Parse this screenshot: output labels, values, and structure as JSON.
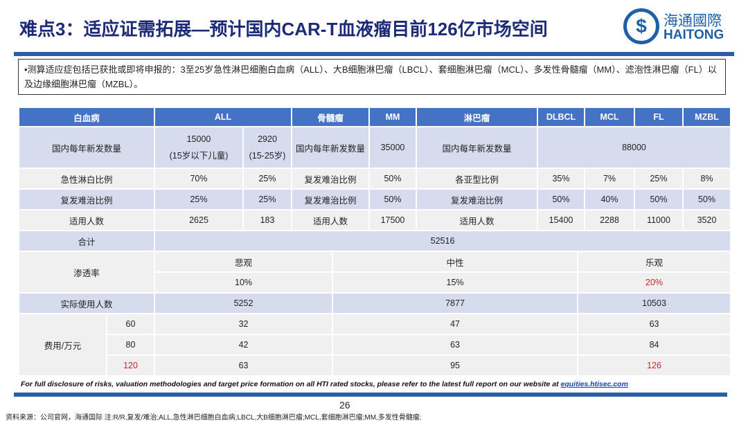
{
  "title": "难点3：适应证需拓展—预计国内CAR-T血液瘤目前126亿市场空间",
  "logo": {
    "cn": "海通國際",
    "en": "HAITONG"
  },
  "note": "•测算适应症包括已获批或即将申报的：3至25岁急性淋巴细胞白血病（ALL）、大B细胞淋巴瘤（LBCL）、套细胞淋巴瘤（MCL）、多发性骨髓瘤（MM）、滤泡性淋巴瘤（FL）以及边缘细胞淋巴瘤（MZBL）。",
  "table": {
    "header": [
      "白血病",
      "ALL",
      "骨髓瘤",
      "MM",
      "淋巴瘤",
      "DLBCL",
      "MCL",
      "FL",
      "MZBL"
    ],
    "r1": {
      "label": "国内每年新发数量",
      "all1": "15000",
      "all1_sub": "(15岁以下儿童)",
      "all2": "2920",
      "all2_sub": "(15-25岁)",
      "mm_label": "国内每年新发数量",
      "mm": "35000",
      "ly_label": "国内每年新发数量",
      "ly": "88000"
    },
    "r2": {
      "label": "急性淋白比例",
      "all1": "70%",
      "all2": "25%",
      "mm_label": "复发难治比例",
      "mm": "50%",
      "ly_label": "各亚型比例",
      "v": [
        "35%",
        "7%",
        "25%",
        "8%"
      ]
    },
    "r3": {
      "label": "复发难治比例",
      "all1": "25%",
      "all2": "25%",
      "mm_label": "复发难治比例",
      "mm": "50%",
      "ly_label": "复发难治比例",
      "v": [
        "50%",
        "40%",
        "50%",
        "50%"
      ]
    },
    "r4": {
      "label": "适用人数",
      "all1": "2625",
      "all2": "183",
      "mm_label": "适用人数",
      "mm": "17500",
      "ly_label": "适用人数",
      "v": [
        "15400",
        "2288",
        "11000",
        "3520"
      ]
    },
    "total": {
      "label": "合计",
      "value": "52516"
    },
    "penetration": {
      "label": "渗透率",
      "scenarios": [
        "悲观",
        "中性",
        "乐观"
      ],
      "values": [
        "10%",
        "15%",
        "20%"
      ]
    },
    "actual": {
      "label": "实际使用人数",
      "values": [
        "5252",
        "7877",
        "10503"
      ]
    },
    "cost": {
      "label": "费用/万元",
      "rows": [
        {
          "price": "60",
          "values": [
            "32",
            "47",
            "63"
          ]
        },
        {
          "price": "80",
          "values": [
            "42",
            "63",
            "84"
          ]
        },
        {
          "price": "120",
          "values": [
            "63",
            "95",
            "126"
          ]
        }
      ]
    }
  },
  "disclosure": "For full disclosure of risks, valuation methodologies and target price formation on all HTI rated stocks, please refer to the latest full report on our website at ",
  "disclosure_link": "equities.htisec.com",
  "page_number": "26",
  "source": "资料来源：公司官网，海通国际 注:R/R,复发/难治;ALL,急性淋巴细胞白血病;LBCL,大B细胞淋巴瘤;MCL,套细胞淋巴瘤;MM,多发性骨髓瘤;"
}
